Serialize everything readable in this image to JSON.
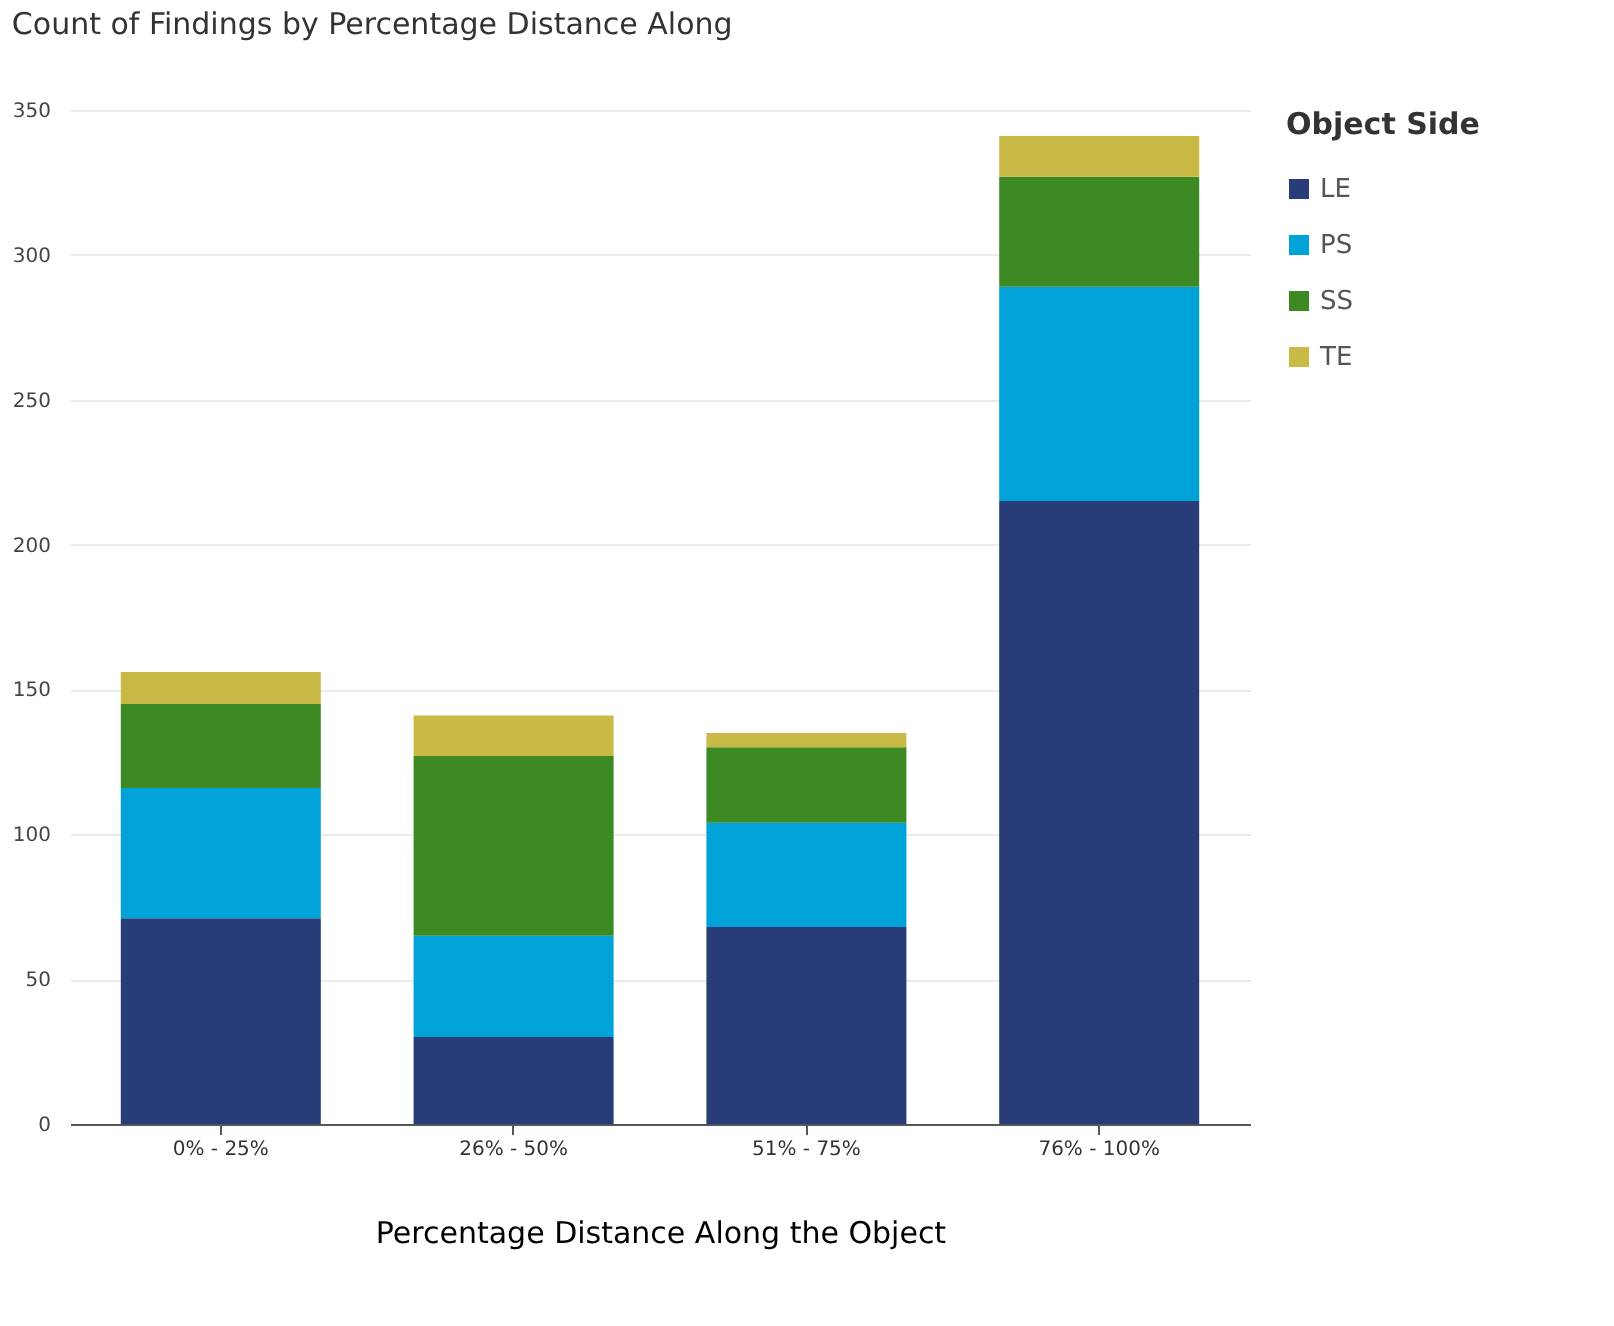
{
  "chart_data": {
    "type": "bar",
    "title": "Count of Findings by Percentage Distance Along",
    "xlabel": "Percentage Distance Along the Object",
    "legend_title": "Object Side",
    "categories": [
      "0% - 25%",
      "26% - 50%",
      "51% - 75%",
      "76% - 100%"
    ],
    "series": [
      {
        "name": "LE",
        "color": "#283c78",
        "values": [
          71,
          30,
          68,
          215
        ]
      },
      {
        "name": "PS",
        "color": "#00a3d8",
        "values": [
          45,
          35,
          36,
          74
        ]
      },
      {
        "name": "SS",
        "color": "#3d8a24",
        "values": [
          29,
          62,
          26,
          38
        ]
      },
      {
        "name": "TE",
        "color": "#c9b945",
        "values": [
          11,
          14,
          5,
          14
        ]
      }
    ],
    "stacked": true,
    "ylim": [
      0,
      350
    ],
    "yticks": [
      0,
      50,
      100,
      150,
      200,
      250,
      300,
      350
    ],
    "grid": "y",
    "legend": "right"
  }
}
